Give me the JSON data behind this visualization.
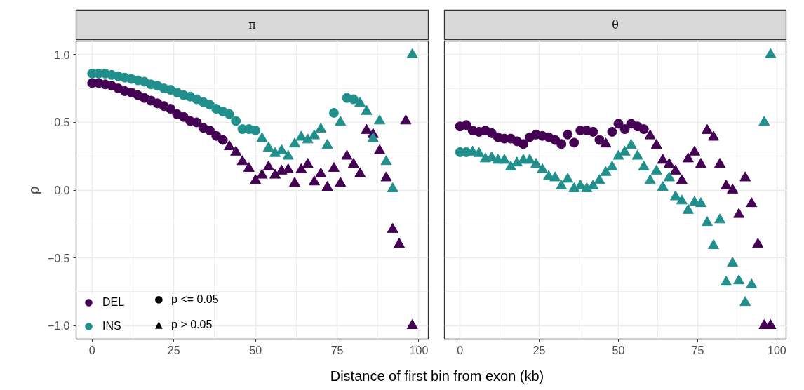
{
  "chart_data": [
    {
      "type": "scatter",
      "title": "π",
      "ylabel": "ρ",
      "xlabel": "Distance of first bin from exon (kb)",
      "x": [
        0,
        2,
        4,
        6,
        8,
        10,
        12,
        14,
        16,
        18,
        20,
        22,
        24,
        26,
        28,
        30,
        32,
        34,
        36,
        38,
        40,
        42,
        44,
        46,
        48,
        50,
        52,
        54,
        56,
        58,
        60,
        62,
        64,
        66,
        68,
        70,
        72,
        74,
        76,
        78,
        80,
        82,
        84,
        86,
        88,
        90,
        92,
        94,
        96,
        98
      ],
      "xlim": [
        -4.9,
        102.9
      ],
      "xticks": [
        0,
        25,
        50,
        75,
        100
      ],
      "ylim": [
        -1.1,
        1.1
      ],
      "yticks": [
        {
          "value": -1.0,
          "label": "−1.0"
        },
        {
          "value": -0.5,
          "label": "−0.5"
        },
        {
          "value": 0,
          "label": "0.0"
        },
        {
          "value": 0.5,
          "label": "0.5"
        },
        {
          "value": 1.0,
          "label": "1.0"
        }
      ],
      "grid": true,
      "legend": "bottom left",
      "annotations": [
        "●",
        "p <= 0.05",
        "▲",
        "p > 0.05"
      ],
      "series": [
        {
          "name": "DEL",
          "color": "#440154",
          "marker": "circle",
          "values": [
            0.79,
            0.79,
            0.78,
            0.77,
            0.75,
            0.73,
            0.72,
            0.7,
            0.68,
            0.66,
            0.64,
            0.62,
            0.6,
            0.56,
            0.54,
            0.51,
            0.5,
            0.46,
            0.44,
            0.4,
            0.37,
            null,
            null,
            null,
            null,
            null,
            null,
            null,
            null,
            null,
            null,
            null,
            null,
            null,
            null,
            null,
            null,
            null,
            null,
            null,
            null,
            null,
            null,
            null,
            null,
            null,
            null,
            null,
            null,
            null
          ]
        },
        {
          "color": "#440154",
          "marker": "triangle",
          "values": [
            null,
            null,
            null,
            null,
            null,
            null,
            null,
            null,
            null,
            null,
            null,
            null,
            null,
            null,
            null,
            null,
            null,
            null,
            null,
            null,
            null,
            0.32,
            0.28,
            0.21,
            0.16,
            0.07,
            0.11,
            0.17,
            0.11,
            0.14,
            0.15,
            0.05,
            0.15,
            0.19,
            0.06,
            0.12,
            0.02,
            0.16,
            0.05,
            0.25,
            0.19,
            0.12,
            0.44,
            0.41,
            0.29,
            0.09,
            -0.29,
            -0.4,
            0.51,
            -1.0
          ]
        },
        {
          "name": "INS",
          "color": "#21908c",
          "marker": "circle",
          "values": [
            0.86,
            0.86,
            0.86,
            0.85,
            0.84,
            0.83,
            0.82,
            0.81,
            0.8,
            0.78,
            0.77,
            0.75,
            0.74,
            0.72,
            0.7,
            0.69,
            0.67,
            0.65,
            0.63,
            0.6,
            0.58,
            0.56,
            0.51,
            0.45,
            0.45,
            0.44,
            null,
            null,
            null,
            null,
            null,
            null,
            null,
            null,
            null,
            null,
            null,
            0.57,
            null,
            0.68,
            0.67,
            null,
            null,
            null,
            null,
            null,
            null,
            null,
            null,
            null
          ]
        },
        {
          "color": "#21908c",
          "marker": "triangle",
          "values": [
            null,
            null,
            null,
            null,
            null,
            null,
            null,
            null,
            null,
            null,
            null,
            null,
            null,
            null,
            null,
            null,
            null,
            null,
            null,
            null,
            null,
            null,
            null,
            null,
            null,
            null,
            0.38,
            0.31,
            0.27,
            0.29,
            0.25,
            0.34,
            0.39,
            0.37,
            0.4,
            0.45,
            0.33,
            null,
            0.5,
            null,
            null,
            0.64,
            0.58,
            0.38,
            0.51,
            0.21,
            0.01,
            null,
            null,
            1.0
          ]
        }
      ]
    },
    {
      "type": "scatter",
      "title": "θ",
      "tick_labels": "x",
      "x": [
        0,
        2,
        4,
        6,
        8,
        10,
        12,
        14,
        16,
        18,
        20,
        22,
        24,
        26,
        28,
        30,
        32,
        34,
        36,
        38,
        40,
        42,
        44,
        46,
        48,
        50,
        52,
        54,
        56,
        58,
        60,
        62,
        64,
        66,
        68,
        70,
        72,
        74,
        76,
        78,
        80,
        82,
        84,
        86,
        88,
        90,
        92,
        94,
        96,
        98
      ],
      "xlim": [
        -4.9,
        102.9
      ],
      "xticks": [
        0,
        25,
        50,
        75,
        100
      ],
      "ylim": [
        -1.1,
        1.1
      ],
      "yticks": [
        -1,
        -0.5,
        0,
        0.5,
        1
      ],
      "grid": true,
      "series": [
        {
          "color": "#440154",
          "marker": "circle",
          "values": [
            0.47,
            0.48,
            0.44,
            0.43,
            0.44,
            0.42,
            0.39,
            0.38,
            0.38,
            0.36,
            0.34,
            0.39,
            0.41,
            0.4,
            0.39,
            0.37,
            0.34,
            0.41,
            0.35,
            0.44,
            0.44,
            0.43,
            0.37,
            null,
            0.43,
            0.49,
            0.45,
            0.49,
            0.47,
            0.45,
            null,
            null,
            null,
            null,
            null,
            null,
            null,
            null,
            null,
            null,
            null,
            null,
            null,
            null,
            null,
            null,
            null,
            null,
            null,
            null
          ]
        },
        {
          "color": "#440154",
          "marker": "triangle",
          "values": [
            null,
            null,
            null,
            null,
            null,
            null,
            null,
            null,
            null,
            null,
            null,
            null,
            null,
            null,
            null,
            null,
            null,
            null,
            null,
            null,
            null,
            null,
            null,
            0.34,
            null,
            null,
            null,
            null,
            null,
            null,
            0.4,
            0.33,
            0.22,
            0.19,
            0.14,
            0.07,
            0.23,
            0.28,
            0.19,
            0.44,
            0.39,
            0.19,
            0.03,
            0.0,
            -0.18,
            0.09,
            -0.1,
            -0.4,
            -1.0,
            -1.0
          ]
        },
        {
          "color": "#21908c",
          "marker": "circle",
          "values": [
            0.28,
            0.28,
            null,
            null,
            null,
            null,
            null,
            null,
            null,
            null,
            null,
            null,
            null,
            null,
            null,
            null,
            null,
            null,
            null,
            null,
            null,
            null,
            null,
            null,
            null,
            null,
            null,
            null,
            null,
            null,
            null,
            null,
            null,
            null,
            null,
            null,
            null,
            null,
            null,
            null,
            null,
            null,
            null,
            null,
            null,
            null,
            null,
            null,
            null,
            null
          ]
        },
        {
          "color": "#21908c",
          "marker": "triangle",
          "values": [
            null,
            null,
            0.28,
            0.27,
            0.23,
            0.24,
            0.22,
            0.22,
            0.17,
            0.2,
            0.22,
            0.22,
            0.19,
            0.15,
            0.1,
            0.09,
            0.03,
            0.08,
            0.01,
            0.03,
            0.01,
            0.03,
            0.07,
            0.13,
            0.17,
            0.25,
            0.28,
            0.33,
            0.25,
            0.17,
            0.07,
            0.14,
            0.02,
            0.09,
            -0.05,
            -0.08,
            -0.15,
            -0.09,
            -0.1,
            -0.24,
            -0.41,
            -0.22,
            -0.68,
            -0.54,
            -0.67,
            -0.83,
            -0.7,
            null,
            0.5,
            1.0
          ]
        }
      ]
    }
  ]
}
